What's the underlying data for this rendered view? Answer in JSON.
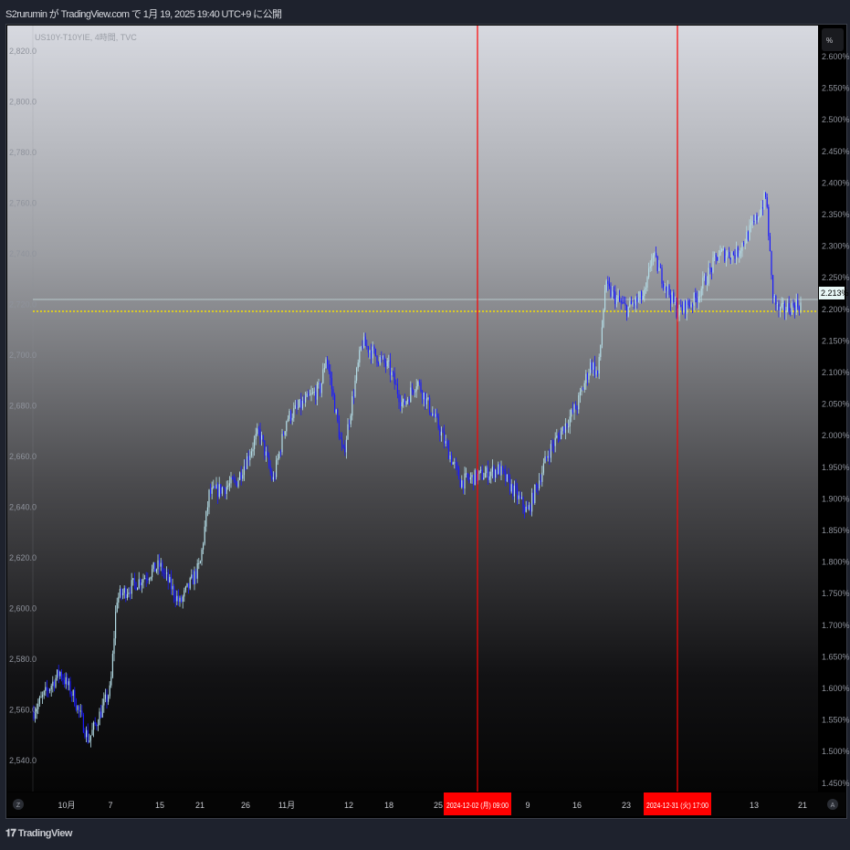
{
  "header": {
    "publish_text": "S2rurumin が TradingView.com で 1月 19, 2025 19:40 UTC+9 に公開"
  },
  "footer": {
    "logo_text": "TradingView"
  },
  "chart_data": {
    "type": "candlestick",
    "symbol_label": "US10Y-T10YIE, 4時間, TVC",
    "left_axis": {
      "ticks": [
        "2,820.0",
        "2,800.0",
        "2,780.0",
        "2,760.0",
        "2,740.0",
        "2,720.0",
        "2,700.0",
        "2,680.0",
        "2,660.0",
        "2,640.0",
        "2,620.0",
        "2,600.0",
        "2,580.0",
        "2,560.0",
        "2,540.0"
      ],
      "ylim": [
        2536,
        2822
      ]
    },
    "right_axis": {
      "ticks": [
        "2.600%",
        "2.550%",
        "2.500%",
        "2.450%",
        "2.400%",
        "2.350%",
        "2.300%",
        "2.250%",
        "2.200%",
        "2.150%",
        "2.100%",
        "2.050%",
        "2.000%",
        "1.950%",
        "1.900%",
        "1.850%",
        "1.800%",
        "1.750%",
        "1.700%",
        "1.650%",
        "1.600%",
        "1.550%",
        "1.500%",
        "1.450%"
      ],
      "current_value": "2.213%",
      "unit_button": "%"
    },
    "x_ticks": [
      "10月",
      "7",
      "15",
      "21",
      "26",
      "11月",
      "12",
      "18",
      "25",
      "9",
      "16",
      "23",
      "13",
      "21"
    ],
    "markers": [
      {
        "label": "2024-12-02 (月)  09:00",
        "date": "2024-12-02"
      },
      {
        "label": "2024-12-31 (火)  17:00",
        "date": "2024-12-31"
      }
    ],
    "axis_buttons": {
      "left": "Z",
      "right": "A"
    },
    "close_path": [
      [
        "2024-09-26",
        2559
      ],
      [
        "2024-09-30",
        2575
      ],
      [
        "2024-10-02",
        2565
      ],
      [
        "2024-10-04",
        2548
      ],
      [
        "2024-10-07",
        2568
      ],
      [
        "2024-10-08",
        2604
      ],
      [
        "2024-10-10",
        2608
      ],
      [
        "2024-10-15",
        2617
      ],
      [
        "2024-10-18",
        2602
      ],
      [
        "2024-10-21",
        2617
      ],
      [
        "2024-10-22",
        2645
      ],
      [
        "2024-10-25",
        2650
      ],
      [
        "2024-10-28",
        2670
      ],
      [
        "2024-10-30",
        2650
      ],
      [
        "2024-11-01",
        2675
      ],
      [
        "2024-11-07",
        2687
      ],
      [
        "2024-11-08",
        2700
      ],
      [
        "2024-11-11",
        2660
      ],
      [
        "2024-11-13",
        2690
      ],
      [
        "2024-11-14",
        2705
      ],
      [
        "2024-11-18",
        2695
      ],
      [
        "2024-11-20",
        2680
      ],
      [
        "2024-11-22",
        2690
      ],
      [
        "2024-11-25",
        2672
      ],
      [
        "2024-11-29",
        2650
      ],
      [
        "2024-12-03",
        2653
      ],
      [
        "2024-12-05",
        2655
      ],
      [
        "2024-12-09",
        2638
      ],
      [
        "2024-12-12",
        2662
      ],
      [
        "2024-12-16",
        2680
      ],
      [
        "2024-12-18",
        2697
      ],
      [
        "2024-12-19",
        2692
      ],
      [
        "2024-12-20",
        2727
      ],
      [
        "2024-12-23",
        2718
      ],
      [
        "2024-12-26",
        2724
      ],
      [
        "2024-12-27",
        2740
      ],
      [
        "2024-12-31",
        2717
      ],
      [
        "2025-01-03",
        2722
      ],
      [
        "2025-01-07",
        2740
      ],
      [
        "2025-01-10",
        2740
      ],
      [
        "2025-01-13",
        2752
      ],
      [
        "2025-01-15",
        2763
      ],
      [
        "2025-01-16",
        2725
      ],
      [
        "2025-01-17",
        2717
      ],
      [
        "2025-01-20",
        2720
      ]
    ],
    "up_color": "#b4dde6",
    "down_color": "#1a1aff",
    "marker_color": "#ff0000",
    "dotted_line_color": "#f5e000"
  }
}
